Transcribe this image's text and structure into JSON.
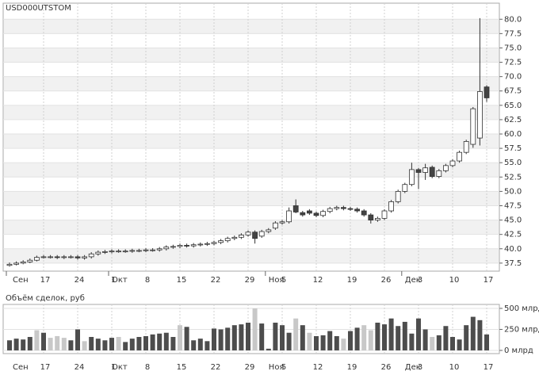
{
  "chart_data": {
    "type": "candlestick",
    "title": "USD000UTSTOM",
    "open": [
      37.1,
      37.3,
      37.5,
      37.7,
      38.0,
      38.5,
      38.6,
      38.6,
      38.5,
      38.6,
      38.6,
      38.4,
      38.6,
      39.1,
      39.4,
      39.5,
      39.6,
      39.6,
      39.6,
      39.7,
      39.7,
      39.8,
      39.8,
      40.0,
      40.3,
      40.4,
      40.6,
      40.5,
      40.7,
      40.8,
      40.9,
      41.1,
      41.4,
      41.8,
      42.0,
      42.4,
      42.9,
      42.2,
      43.0,
      43.6,
      44.5,
      44.7,
      47.5,
      46.3,
      46.6,
      46.2,
      45.8,
      46.5,
      47.0,
      47.2,
      47.0,
      46.9,
      46.6,
      45.9,
      45.0,
      45.3,
      46.6,
      48.2,
      50.0,
      51.2,
      53.8,
      53.3,
      54.2,
      52.6,
      53.6,
      54.5,
      55.3,
      56.8,
      58.2,
      59.3,
      68.2
    ],
    "high": [
      37.6,
      37.8,
      38.0,
      38.3,
      38.8,
      38.9,
      38.9,
      38.9,
      38.9,
      38.9,
      38.9,
      38.9,
      39.4,
      39.7,
      39.8,
      39.9,
      39.9,
      39.9,
      40.0,
      40.0,
      40.1,
      40.1,
      40.3,
      40.6,
      40.7,
      40.9,
      40.9,
      41.0,
      41.1,
      41.2,
      41.4,
      41.7,
      42.1,
      42.3,
      42.7,
      43.2,
      43.2,
      43.3,
      43.6,
      44.8,
      45.0,
      47.2,
      48.6,
      46.6,
      46.9,
      46.5,
      46.8,
      47.3,
      47.5,
      47.5,
      47.3,
      47.2,
      46.9,
      46.2,
      45.6,
      46.9,
      48.5,
      50.3,
      51.5,
      55.0,
      54.1,
      54.8,
      54.5,
      53.9,
      54.8,
      55.6,
      57.1,
      59.0,
      64.7,
      80.2,
      68.5
    ],
    "low": [
      36.9,
      37.1,
      37.3,
      37.5,
      37.8,
      38.3,
      38.3,
      38.2,
      38.2,
      38.3,
      38.1,
      38.1,
      38.3,
      38.8,
      39.1,
      39.2,
      39.3,
      39.3,
      39.3,
      39.4,
      39.4,
      39.5,
      39.5,
      39.7,
      40.0,
      40.1,
      40.2,
      40.2,
      40.4,
      40.5,
      40.6,
      40.8,
      41.1,
      41.5,
      41.7,
      42.1,
      40.9,
      41.9,
      42.7,
      43.3,
      44.2,
      44.4,
      46.2,
      45.6,
      45.9,
      45.5,
      45.5,
      46.2,
      46.7,
      46.7,
      46.6,
      46.3,
      45.6,
      44.4,
      44.7,
      45.0,
      46.3,
      47.9,
      49.7,
      50.9,
      50.4,
      52.0,
      52.3,
      52.3,
      53.3,
      54.2,
      55.0,
      56.5,
      57.6,
      58.0,
      65.6
    ],
    "close": [
      37.3,
      37.5,
      37.7,
      38.0,
      38.5,
      38.6,
      38.6,
      38.5,
      38.6,
      38.6,
      38.4,
      38.6,
      39.1,
      39.4,
      39.5,
      39.6,
      39.6,
      39.6,
      39.7,
      39.7,
      39.8,
      39.8,
      40.0,
      40.3,
      40.4,
      40.6,
      40.5,
      40.7,
      40.8,
      40.9,
      41.1,
      41.4,
      41.8,
      42.0,
      42.4,
      42.9,
      41.8,
      43.0,
      43.3,
      44.5,
      44.7,
      46.6,
      46.4,
      45.9,
      46.2,
      45.8,
      46.5,
      47.0,
      47.2,
      47.0,
      46.9,
      46.6,
      45.9,
      45.0,
      45.3,
      46.6,
      48.2,
      50.0,
      51.2,
      53.8,
      53.3,
      54.1,
      52.6,
      53.6,
      54.5,
      55.3,
      56.8,
      58.7,
      64.4,
      67.4,
      66.3
    ],
    "ylim": [
      36.1,
      82.8
    ],
    "yticks": [
      {
        "value": 37.5,
        "label": "37.5"
      },
      {
        "value": 40,
        "label": "40.0"
      },
      {
        "value": 42.5,
        "label": "42.5"
      },
      {
        "value": 45,
        "label": "45.0"
      },
      {
        "value": 47.5,
        "label": "47.5"
      },
      {
        "value": 50,
        "label": "50.0"
      },
      {
        "value": 52.5,
        "label": "52.5"
      },
      {
        "value": 55,
        "label": "55.0"
      },
      {
        "value": 57.5,
        "label": "57.5"
      },
      {
        "value": 60,
        "label": "60.0"
      },
      {
        "value": 62.5,
        "label": "62.5"
      },
      {
        "value": 65,
        "label": "65.0"
      },
      {
        "value": 67.5,
        "label": "67.5"
      },
      {
        "value": 70,
        "label": "70.0"
      },
      {
        "value": 72.5,
        "label": "72.5"
      },
      {
        "value": 75,
        "label": "75.0"
      },
      {
        "value": 77.5,
        "label": "77.5"
      },
      {
        "value": 80,
        "label": "80.0"
      }
    ],
    "xticks": [
      {
        "value": 5,
        "label": "17"
      },
      {
        "value": 10,
        "label": "24"
      },
      {
        "value": 15,
        "label": "1"
      },
      {
        "value": 20,
        "label": "8"
      },
      {
        "value": 25,
        "label": "15"
      },
      {
        "value": 30,
        "label": "22"
      },
      {
        "value": 35,
        "label": "29"
      },
      {
        "value": 40,
        "label": "5"
      },
      {
        "value": 45,
        "label": "12"
      },
      {
        "value": 50,
        "label": "19"
      },
      {
        "value": 55,
        "label": "26"
      },
      {
        "value": 60,
        "label": "3"
      },
      {
        "value": 65,
        "label": "10"
      },
      {
        "value": 70,
        "label": "17"
      }
    ],
    "month_ticks": [
      {
        "value": 0,
        "label": "Сен"
      },
      {
        "value": 15,
        "label": "Окт"
      },
      {
        "value": 38,
        "label": "Ноя"
      },
      {
        "value": 58,
        "label": "Дек"
      }
    ],
    "up_color": "#ffffff",
    "down_color": "#444444",
    "volume_title": "Объём сделок, руб",
    "volume": [
      120,
      140,
      130,
      160,
      240,
      210,
      150,
      170,
      150,
      120,
      250,
      110,
      160,
      140,
      120,
      150,
      160,
      100,
      140,
      160,
      170,
      190,
      200,
      210,
      160,
      300,
      280,
      120,
      140,
      110,
      260,
      250,
      270,
      300,
      310,
      330,
      500,
      320,
      20,
      330,
      300,
      210,
      380,
      300,
      210,
      170,
      180,
      230,
      170,
      140,
      230,
      270,
      300,
      240,
      330,
      310,
      380,
      290,
      340,
      200,
      380,
      250,
      160,
      180,
      290,
      160,
      130,
      300,
      400,
      360,
      190
    ],
    "volume_colors": [
      "#4d4d4d",
      "#4d4d4d",
      "#4d4d4d",
      "#4d4d4d",
      "#c8c8c8",
      "#4d4d4d",
      "#c8c8c8",
      "#c8c8c8",
      "#c8c8c8",
      "#4d4d4d",
      "#4d4d4d",
      "#c8c8c8",
      "#4d4d4d",
      "#4d4d4d",
      "#4d4d4d",
      "#4d4d4d",
      "#c8c8c8",
      "#4d4d4d",
      "#4d4d4d",
      "#4d4d4d",
      "#4d4d4d",
      "#4d4d4d",
      "#4d4d4d",
      "#4d4d4d",
      "#4d4d4d",
      "#c8c8c8",
      "#4d4d4d",
      "#4d4d4d",
      "#4d4d4d",
      "#4d4d4d",
      "#4d4d4d",
      "#4d4d4d",
      "#4d4d4d",
      "#4d4d4d",
      "#4d4d4d",
      "#4d4d4d",
      "#c8c8c8",
      "#4d4d4d",
      "#4d4d4d",
      "#4d4d4d",
      "#4d4d4d",
      "#4d4d4d",
      "#c8c8c8",
      "#4d4d4d",
      "#c8c8c8",
      "#4d4d4d",
      "#4d4d4d",
      "#4d4d4d",
      "#4d4d4d",
      "#c8c8c8",
      "#4d4d4d",
      "#4d4d4d",
      "#c8c8c8",
      "#c8c8c8",
      "#4d4d4d",
      "#4d4d4d",
      "#4d4d4d",
      "#4d4d4d",
      "#4d4d4d",
      "#4d4d4d",
      "#4d4d4d",
      "#4d4d4d",
      "#c8c8c8",
      "#4d4d4d",
      "#4d4d4d",
      "#4d4d4d",
      "#4d4d4d",
      "#4d4d4d",
      "#4d4d4d",
      "#4d4d4d",
      "#4d4d4d"
    ],
    "vlim": [
      -38,
      547
    ],
    "vticks": [
      {
        "value": 500,
        "label": "500 млрд"
      },
      {
        "value": 250,
        "label": "250 млрд"
      },
      {
        "value": 0,
        "label": "0 млрд"
      }
    ]
  }
}
